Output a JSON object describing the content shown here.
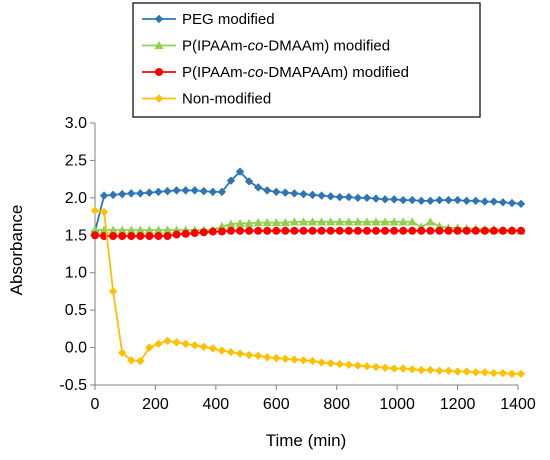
{
  "chart_data": {
    "type": "line",
    "xlabel": "Time (min)",
    "ylabel": "Absorbance",
    "xlim": [
      0,
      1400
    ],
    "ylim": [
      -0.5,
      3.0
    ],
    "x_ticks": [
      "0",
      "200",
      "400",
      "600",
      "800",
      "1000",
      "1200",
      "1400"
    ],
    "y_ticks": [
      "-0.5",
      "0.0",
      "0.5",
      "1.0",
      "1.5",
      "2.0",
      "2.5",
      "3.0"
    ],
    "grid": false,
    "legend_position": "top",
    "series": [
      {
        "name_parts": [
          "PEG modified"
        ],
        "name_italic": [
          false
        ],
        "color": "#2E75B6",
        "marker": "diamond",
        "x": [
          0,
          30,
          60,
          90,
          120,
          150,
          180,
          210,
          240,
          270,
          300,
          330,
          360,
          390,
          420,
          450,
          480,
          510,
          540,
          570,
          600,
          630,
          660,
          690,
          720,
          750,
          780,
          810,
          840,
          870,
          900,
          930,
          960,
          990,
          1020,
          1050,
          1080,
          1110,
          1140,
          1170,
          1200,
          1230,
          1260,
          1290,
          1320,
          1350,
          1380,
          1410
        ],
        "y": [
          1.55,
          2.03,
          2.04,
          2.05,
          2.06,
          2.06,
          2.07,
          2.08,
          2.09,
          2.1,
          2.1,
          2.1,
          2.09,
          2.08,
          2.08,
          2.23,
          2.35,
          2.22,
          2.14,
          2.1,
          2.08,
          2.07,
          2.06,
          2.05,
          2.04,
          2.03,
          2.02,
          2.01,
          2.01,
          2.0,
          2.0,
          1.99,
          1.98,
          1.98,
          1.97,
          1.97,
          1.96,
          1.96,
          1.97,
          1.97,
          1.97,
          1.96,
          1.96,
          1.95,
          1.95,
          1.94,
          1.93,
          1.92
        ]
      },
      {
        "name_parts": [
          "P(IPAAm-",
          "co",
          "-DMAAm) modified"
        ],
        "name_italic": [
          false,
          true,
          false
        ],
        "color": "#92D050",
        "marker": "triangle",
        "x": [
          0,
          30,
          60,
          90,
          120,
          150,
          180,
          210,
          240,
          270,
          300,
          330,
          360,
          390,
          420,
          450,
          480,
          510,
          540,
          570,
          600,
          630,
          660,
          690,
          720,
          750,
          780,
          810,
          840,
          870,
          900,
          930,
          960,
          990,
          1020,
          1050,
          1080,
          1110,
          1140,
          1170,
          1200,
          1230,
          1260,
          1290,
          1320,
          1350,
          1380,
          1410
        ],
        "y": [
          1.57,
          1.57,
          1.57,
          1.57,
          1.57,
          1.57,
          1.57,
          1.57,
          1.57,
          1.57,
          1.57,
          1.57,
          1.57,
          1.57,
          1.62,
          1.65,
          1.66,
          1.66,
          1.67,
          1.67,
          1.67,
          1.67,
          1.68,
          1.68,
          1.68,
          1.68,
          1.68,
          1.68,
          1.68,
          1.68,
          1.68,
          1.68,
          1.68,
          1.68,
          1.68,
          1.68,
          1.61,
          1.68,
          1.62,
          1.6,
          1.6,
          1.59,
          1.59,
          1.58,
          1.58,
          1.57,
          1.57,
          1.56
        ]
      },
      {
        "name_parts": [
          "P(IPAAm-",
          "co",
          "-DMAPAAm) modified"
        ],
        "name_italic": [
          false,
          true,
          false
        ],
        "color": "#FF0000",
        "marker": "circle",
        "x": [
          0,
          30,
          60,
          90,
          120,
          150,
          180,
          210,
          240,
          270,
          300,
          330,
          360,
          390,
          420,
          450,
          480,
          510,
          540,
          570,
          600,
          630,
          660,
          690,
          720,
          750,
          780,
          810,
          840,
          870,
          900,
          930,
          960,
          990,
          1020,
          1050,
          1080,
          1110,
          1140,
          1170,
          1200,
          1230,
          1260,
          1290,
          1320,
          1350,
          1380,
          1410
        ],
        "y": [
          1.5,
          1.49,
          1.49,
          1.49,
          1.49,
          1.49,
          1.49,
          1.49,
          1.49,
          1.51,
          1.52,
          1.53,
          1.54,
          1.55,
          1.55,
          1.56,
          1.56,
          1.56,
          1.56,
          1.56,
          1.56,
          1.56,
          1.56,
          1.56,
          1.56,
          1.56,
          1.56,
          1.56,
          1.56,
          1.56,
          1.56,
          1.56,
          1.56,
          1.56,
          1.56,
          1.56,
          1.56,
          1.56,
          1.56,
          1.56,
          1.56,
          1.56,
          1.56,
          1.56,
          1.56,
          1.56,
          1.56,
          1.56
        ]
      },
      {
        "name_parts": [
          "Non-modified"
        ],
        "name_italic": [
          false
        ],
        "color": "#FFC000",
        "marker": "diamond",
        "x": [
          0,
          30,
          60,
          90,
          120,
          150,
          180,
          210,
          240,
          270,
          300,
          330,
          360,
          390,
          420,
          450,
          480,
          510,
          540,
          570,
          600,
          630,
          660,
          690,
          720,
          750,
          780,
          810,
          840,
          870,
          900,
          930,
          960,
          990,
          1020,
          1050,
          1080,
          1110,
          1140,
          1170,
          1200,
          1230,
          1260,
          1290,
          1320,
          1350,
          1380,
          1410
        ],
        "y": [
          1.83,
          1.81,
          0.75,
          -0.07,
          -0.17,
          -0.18,
          0.0,
          0.05,
          0.09,
          0.07,
          0.05,
          0.03,
          0.01,
          -0.01,
          -0.04,
          -0.06,
          -0.08,
          -0.1,
          -0.11,
          -0.13,
          -0.14,
          -0.15,
          -0.16,
          -0.17,
          -0.18,
          -0.2,
          -0.21,
          -0.22,
          -0.23,
          -0.24,
          -0.25,
          -0.26,
          -0.27,
          -0.28,
          -0.28,
          -0.29,
          -0.3,
          -0.3,
          -0.31,
          -0.31,
          -0.32,
          -0.32,
          -0.33,
          -0.33,
          -0.34,
          -0.34,
          -0.35,
          -0.35
        ]
      }
    ]
  }
}
